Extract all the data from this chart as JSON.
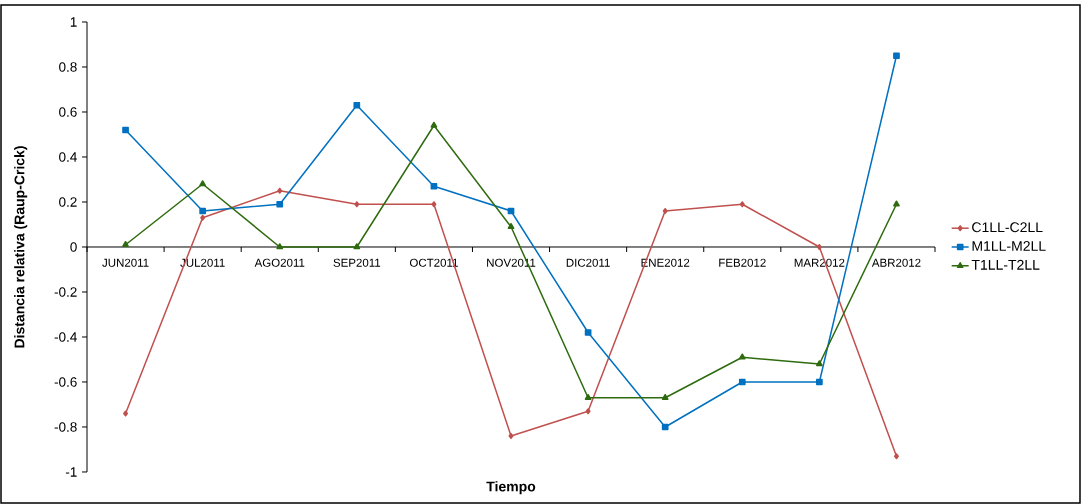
{
  "chart_data": {
    "type": "line",
    "xlabel": "Tiempo",
    "ylabel": "Distancia relativa (Raup-Crick)",
    "categories": [
      "JUN2011",
      "JUL2011",
      "AGO2011",
      "SEP2011",
      "OCT2011",
      "NOV2011",
      "DIC2011",
      "ENE2012",
      "FEB2012",
      "MAR2012",
      "ABR2012"
    ],
    "series": [
      {
        "name": "C1LL-C2LL",
        "color": "#c0504d",
        "marker": "diamond",
        "values": [
          -0.74,
          0.13,
          0.25,
          0.19,
          0.19,
          -0.84,
          -0.73,
          0.16,
          0.19,
          0.0,
          -0.93
        ]
      },
      {
        "name": "M1LL-M2LL",
        "color": "#0070c0",
        "marker": "square",
        "values": [
          0.52,
          0.16,
          0.19,
          0.63,
          0.27,
          0.16,
          -0.38,
          -0.8,
          -0.6,
          -0.6,
          0.85
        ]
      },
      {
        "name": "T1LL-T2LL",
        "color": "#2e6b0e",
        "marker": "triangle",
        "values": [
          0.01,
          0.28,
          0.0,
          0.0,
          0.54,
          0.09,
          -0.67,
          -0.67,
          -0.49,
          -0.52,
          0.19
        ]
      }
    ],
    "ylim": [
      -1,
      1
    ],
    "yticks": [
      -1,
      -0.8,
      -0.6,
      -0.4,
      -0.2,
      0,
      0.2,
      0.4,
      0.6,
      0.8,
      1
    ],
    "legend": "right",
    "grid": false,
    "line_style": "solid"
  }
}
